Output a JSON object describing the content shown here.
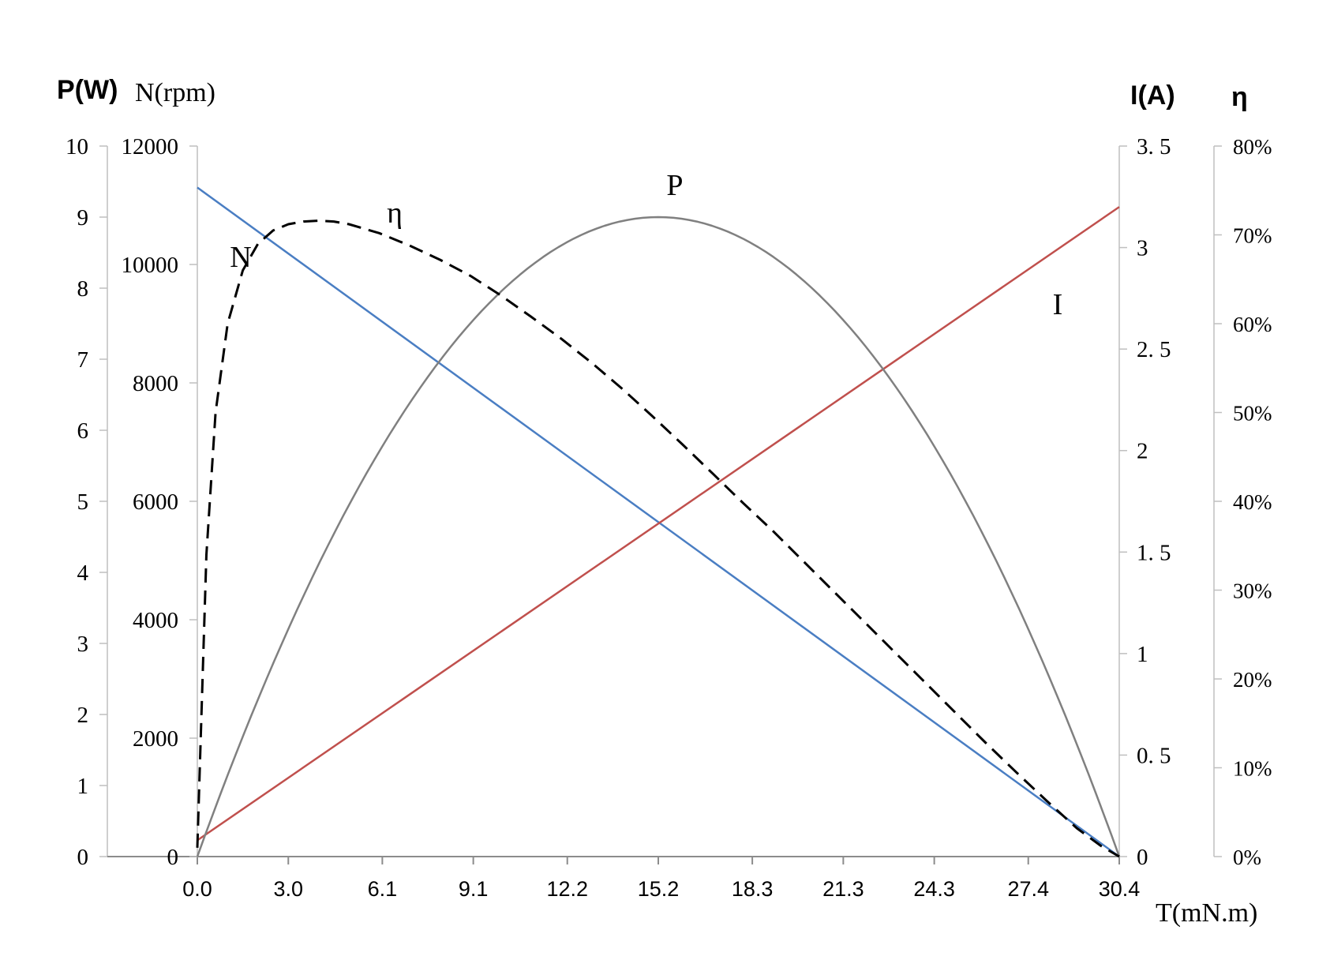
{
  "axis_titles": {
    "power": "P(W)",
    "speed": "N(rpm)",
    "current": "I(A)",
    "efficiency": "η",
    "torque": "T(mN.m)"
  },
  "chart_data": {
    "type": "line",
    "title": "",
    "xlabel": "T(mN.m)",
    "x_ticks": [
      "0.0",
      "3.0",
      "6.1",
      "9.1",
      "12.2",
      "15.2",
      "18.3",
      "21.3",
      "24.3",
      "27.4",
      "30.4"
    ],
    "xlim": [
      0,
      30.4
    ],
    "axes": {
      "power": {
        "label": "P(W)",
        "ylim": [
          0,
          10
        ],
        "ticks": [
          "0",
          "1",
          "2",
          "3",
          "4",
          "5",
          "6",
          "7",
          "8",
          "9",
          "10"
        ]
      },
      "speed": {
        "label": "N(rpm)",
        "ylim": [
          0,
          12000
        ],
        "ticks": [
          "0",
          "2000",
          "4000",
          "6000",
          "8000",
          "10000",
          "12000"
        ]
      },
      "current": {
        "label": "I(A)",
        "ylim": [
          0,
          3.5
        ],
        "ticks": [
          "0",
          "0. 5",
          "1",
          "1. 5",
          "2",
          "2. 5",
          "3",
          "3. 5"
        ]
      },
      "efficiency": {
        "label": "η",
        "ylim": [
          0,
          0.8
        ],
        "ticks": [
          "0%",
          "10%",
          "20%",
          "30%",
          "40%",
          "50%",
          "60%",
          "70%",
          "80%"
        ]
      }
    },
    "series": [
      {
        "name": "N",
        "axis": "speed",
        "color": "#4a7ec3",
        "style": "solid",
        "x": [
          0,
          30.4
        ],
        "y": [
          11300,
          0
        ]
      },
      {
        "name": "I",
        "axis": "current",
        "color": "#c0504d",
        "style": "solid",
        "x": [
          0,
          30.4
        ],
        "y": [
          0.08,
          3.2
        ]
      },
      {
        "name": "P",
        "axis": "power",
        "color": "#808080",
        "style": "solid",
        "formula": "quadratic",
        "x": [
          0,
          15.2,
          30.4
        ],
        "y": [
          0,
          9.0,
          0
        ]
      },
      {
        "name": "η",
        "axis": "efficiency",
        "color": "#000000",
        "style": "dashed",
        "x": [
          0,
          0.3,
          0.6,
          1.0,
          1.5,
          2.0,
          2.5,
          3.0,
          3.5,
          4.0,
          4.5,
          5.0,
          6.0,
          7.0,
          8.0,
          9.0,
          10.0,
          11.0,
          12.0,
          13.0,
          14.0,
          15.0,
          16.0,
          17.0,
          18.0,
          19.0,
          20.0,
          21.0,
          22.0,
          23.0,
          24.0,
          25.0,
          26.0,
          27.0,
          28.0,
          29.0,
          29.8,
          30.4
        ],
        "y": [
          0.01,
          0.34,
          0.5,
          0.6,
          0.66,
          0.69,
          0.705,
          0.712,
          0.715,
          0.716,
          0.715,
          0.712,
          0.702,
          0.688,
          0.672,
          0.654,
          0.632,
          0.608,
          0.583,
          0.556,
          0.527,
          0.496,
          0.464,
          0.431,
          0.398,
          0.366,
          0.332,
          0.298,
          0.264,
          0.23,
          0.196,
          0.162,
          0.128,
          0.095,
          0.063,
          0.032,
          0.012,
          0.0
        ]
      }
    ],
    "annotations": [
      "N",
      "η",
      "P",
      "I"
    ],
    "legend": "none",
    "grid": false
  }
}
